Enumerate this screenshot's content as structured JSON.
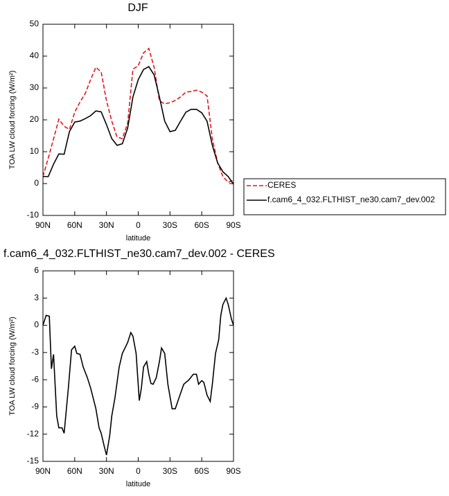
{
  "chart_data": [
    {
      "type": "line",
      "title": "DJF",
      "xlabel": "latitude",
      "ylabel": "TOA LW cloud forcing (W/m²)",
      "x": [
        90,
        85,
        80,
        75,
        70,
        65,
        60,
        55,
        50,
        45,
        40,
        35,
        30,
        25,
        20,
        15,
        10,
        5,
        0,
        -5,
        -10,
        -15,
        -20,
        -25,
        -30,
        -35,
        -40,
        -45,
        -50,
        -55,
        -60,
        -65,
        -70,
        -75,
        -80,
        -85,
        -90
      ],
      "series": [
        {
          "name": "CERES",
          "color": "#e3141b",
          "style": "dashed",
          "values": [
            2.2,
            8.0,
            14,
            20.2,
            18,
            17,
            22.4,
            25.6,
            28.3,
            32.6,
            36.5,
            35,
            26,
            19.6,
            14.6,
            14.1,
            18.9,
            35.9,
            37,
            41,
            42.4,
            36.5,
            26,
            25,
            25.4,
            26.1,
            27.2,
            28.7,
            28.9,
            29.3,
            28.7,
            27.5,
            14.1,
            6.5,
            2.2,
            0.4,
            1.1
          ]
        },
        {
          "name": "f.cam6_4_032.FLTHIST_ne30.cam7_dev.002",
          "color": "#000000",
          "style": "solid",
          "values": [
            2.2,
            2.2,
            6.1,
            9.3,
            9.2,
            16.3,
            19.3,
            19.6,
            20.4,
            21.3,
            22.8,
            22.5,
            18.5,
            14.1,
            12,
            12.5,
            17.4,
            27.2,
            32.6,
            35.8,
            36.7,
            34.1,
            27.2,
            19.6,
            16.3,
            16.7,
            19.6,
            22.4,
            23.3,
            23.3,
            22.2,
            19.6,
            12,
            6.5,
            3.7,
            2.2,
            -0.2
          ]
        }
      ],
      "xlim": [
        90,
        -90
      ],
      "xticks": [
        {
          "value": 90,
          "label": "90N"
        },
        {
          "value": 60,
          "label": "60N"
        },
        {
          "value": 30,
          "label": "30N"
        },
        0,
        {
          "value": -30,
          "label": "30S"
        },
        {
          "value": -60,
          "label": "60S"
        },
        {
          "value": -90,
          "label": "90S"
        }
      ],
      "ylim": [
        -10,
        50
      ],
      "yticks": [
        -10,
        0,
        10,
        20,
        30,
        40,
        50
      ],
      "legend": "outside-right"
    },
    {
      "type": "line",
      "title": "f.cam6_4_032.FLTHIST_ne30.cam7_dev.002 - CERES",
      "xlabel": "latitude",
      "ylabel": "TOA LW cloud forcing (W/m²)",
      "series": [
        {
          "color": "#000000",
          "style": "solid",
          "x": [
            90,
            87,
            84,
            82,
            80,
            77,
            75,
            72,
            70,
            66,
            63,
            60,
            58,
            55,
            52,
            48,
            45,
            40,
            37,
            35,
            32,
            30,
            27,
            25,
            22,
            18,
            15,
            10,
            7,
            5,
            2,
            -1,
            -3,
            -5,
            -8,
            -10,
            -12,
            -14,
            -17,
            -20,
            -22,
            -25,
            -28,
            -32,
            -35,
            -40,
            -43,
            -48,
            -52,
            -55,
            -57,
            -60,
            -62,
            -65,
            -68,
            -70,
            -73,
            -76,
            -78,
            -80,
            -83,
            -85,
            -88,
            -90
          ],
          "values": [
            0,
            1.1,
            1,
            -4.8,
            -3.2,
            -10,
            -11.3,
            -11.3,
            -11.9,
            -6.9,
            -2.7,
            -2.3,
            -3.1,
            -3.2,
            -4.6,
            -5.8,
            -6.9,
            -9.2,
            -11.3,
            -11.9,
            -13.4,
            -14.3,
            -12.2,
            -10,
            -8,
            -4.6,
            -3.1,
            -1.9,
            -0.8,
            -1.2,
            -3.1,
            -8.3,
            -6.9,
            -4.6,
            -4,
            -5.4,
            -6.4,
            -6.5,
            -5.8,
            -4,
            -2.5,
            -3.1,
            -6.5,
            -9.2,
            -9.2,
            -7.5,
            -6.5,
            -6,
            -5.4,
            -5.4,
            -6.5,
            -6.1,
            -6.3,
            -7.7,
            -8.4,
            -6.5,
            -3.1,
            -1.6,
            1.1,
            2.3,
            3.0,
            2.3,
            0.7,
            0
          ]
        }
      ],
      "xlim": [
        90,
        -90
      ],
      "xticks": [
        {
          "value": 90,
          "label": "90N"
        },
        {
          "value": 60,
          "label": "60N"
        },
        {
          "value": 30,
          "label": "30N"
        },
        0,
        {
          "value": -30,
          "label": "30S"
        },
        {
          "value": -60,
          "label": "60S"
        },
        {
          "value": -90,
          "label": "90S"
        }
      ],
      "ylim": [
        -15,
        6
      ],
      "yticks": [
        -15,
        -12,
        -9,
        -6,
        -3,
        0,
        3,
        6
      ]
    }
  ]
}
